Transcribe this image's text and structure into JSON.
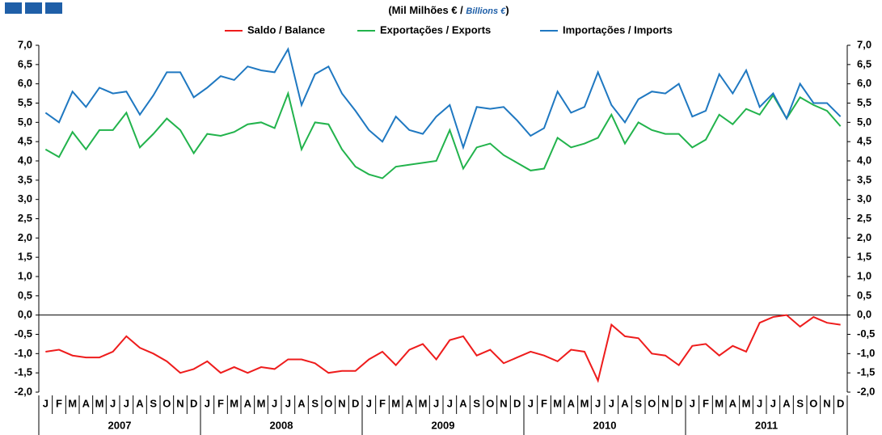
{
  "chart_data": {
    "type": "line",
    "title": [
      "(Mil Milhões € / ",
      "Billions €",
      ")"
    ],
    "categories": [
      "J",
      "F",
      "M",
      "A",
      "M",
      "J",
      "J",
      "A",
      "S",
      "O",
      "N",
      "D",
      "J",
      "F",
      "M",
      "A",
      "M",
      "J",
      "J",
      "A",
      "S",
      "O",
      "N",
      "D",
      "J",
      "F",
      "M",
      "A",
      "M",
      "J",
      "J",
      "A",
      "S",
      "O",
      "N",
      "D",
      "J",
      "F",
      "M",
      "A",
      "M",
      "J",
      "J",
      "A",
      "S",
      "O",
      "N",
      "D",
      "J",
      "F",
      "M",
      "A",
      "M",
      "J",
      "J",
      "A",
      "S",
      "O",
      "N",
      "D"
    ],
    "years": [
      "2007",
      "2008",
      "2009",
      "2010",
      "2011"
    ],
    "legend": "top",
    "series": [
      {
        "name": "Saldo / Balance",
        "color": "#ee1c1c",
        "values": [
          -0.95,
          -0.9,
          -1.05,
          -1.1,
          -1.1,
          -0.95,
          -0.55,
          -0.85,
          -1.0,
          -1.2,
          -1.5,
          -1.4,
          -1.2,
          -1.5,
          -1.35,
          -1.5,
          -1.35,
          -1.4,
          -1.15,
          -1.15,
          -1.25,
          -1.5,
          -1.45,
          -1.45,
          -1.15,
          -0.95,
          -1.3,
          -0.9,
          -0.75,
          -1.15,
          -0.65,
          -0.55,
          -1.05,
          -0.9,
          -1.25,
          -1.1,
          -0.95,
          -1.05,
          -1.2,
          -0.9,
          -0.95,
          -1.7,
          -0.25,
          -0.55,
          -0.6,
          -1.0,
          -1.05,
          -1.3,
          -0.8,
          -0.75,
          -1.05,
          -0.8,
          -0.95,
          -0.2,
          -0.05,
          0.0,
          -0.3,
          -0.05,
          -0.2,
          -0.25
        ]
      },
      {
        "name": "Exportações / Exports",
        "color": "#22b34c",
        "values": [
          4.3,
          4.1,
          4.75,
          4.3,
          4.8,
          4.8,
          5.25,
          4.35,
          4.7,
          5.1,
          4.8,
          4.2,
          4.7,
          4.65,
          4.75,
          4.95,
          5.0,
          4.85,
          5.75,
          4.3,
          5.0,
          4.95,
          4.3,
          3.85,
          3.65,
          3.55,
          3.85,
          3.9,
          3.95,
          4.0,
          4.8,
          3.8,
          4.35,
          4.45,
          4.15,
          3.95,
          3.75,
          3.8,
          4.6,
          4.35,
          4.45,
          4.6,
          5.2,
          4.45,
          5.0,
          4.8,
          4.7,
          4.7,
          4.35,
          4.55,
          5.2,
          4.95,
          5.35,
          5.2,
          5.7,
          5.1,
          5.65,
          5.45,
          5.3,
          4.9
        ]
      },
      {
        "name": "Importações / Imports",
        "color": "#1f78c1",
        "values": [
          5.25,
          5.0,
          5.8,
          5.4,
          5.9,
          5.75,
          5.8,
          5.2,
          5.7,
          6.3,
          6.3,
          5.65,
          5.9,
          6.2,
          6.1,
          6.45,
          6.35,
          6.3,
          6.9,
          5.45,
          6.25,
          6.45,
          5.75,
          5.3,
          4.8,
          4.5,
          5.15,
          4.8,
          4.7,
          5.15,
          5.45,
          4.35,
          5.4,
          5.35,
          5.4,
          5.05,
          4.65,
          4.85,
          5.8,
          5.25,
          5.4,
          6.3,
          5.45,
          5.0,
          5.6,
          5.8,
          5.75,
          6.0,
          5.15,
          5.3,
          6.25,
          5.75,
          6.35,
          5.4,
          5.75,
          5.1,
          6.0,
          5.5,
          5.5,
          5.15
        ]
      }
    ],
    "ylim": [
      -2.0,
      7.0
    ],
    "yticks": [
      {
        "value": 7.0,
        "label": "7,0"
      },
      {
        "value": 6.5,
        "label": "6,5"
      },
      {
        "value": 6.0,
        "label": "6,0"
      },
      {
        "value": 5.5,
        "label": "5,5"
      },
      {
        "value": 5.0,
        "label": "5,0"
      },
      {
        "value": 4.5,
        "label": "4,5"
      },
      {
        "value": 4.0,
        "label": "4,0"
      },
      {
        "value": 3.5,
        "label": "3,5"
      },
      {
        "value": 3.0,
        "label": "3,0"
      },
      {
        "value": 2.5,
        "label": "2,5"
      },
      {
        "value": 2.0,
        "label": "2,0"
      },
      {
        "value": 1.5,
        "label": "1,5"
      },
      {
        "value": 1.0,
        "label": "1,0"
      },
      {
        "value": 0.5,
        "label": "0,5"
      },
      {
        "value": 0.0,
        "label": "0,0"
      },
      {
        "value": -0.5,
        "label": "-0,5"
      },
      {
        "value": -1.0,
        "label": "-1,0"
      },
      {
        "value": -1.5,
        "label": "-1,5"
      },
      {
        "value": -2.0,
        "label": "-2,0"
      }
    ],
    "y2lim": [
      -2.0,
      7.0
    ],
    "y2ticks": [
      {
        "value": 7.0,
        "label": "7,0"
      },
      {
        "value": 6.5,
        "label": "6,5"
      },
      {
        "value": 6.0,
        "label": "6,0"
      },
      {
        "value": 5.5,
        "label": "5,5"
      },
      {
        "value": 5.0,
        "label": "5,0"
      },
      {
        "value": 4.5,
        "label": "4,5"
      },
      {
        "value": 4.0,
        "label": "4,0"
      },
      {
        "value": 3.5,
        "label": "3,5"
      },
      {
        "value": 3.0,
        "label": "3,0"
      },
      {
        "value": 2.5,
        "label": "2,5"
      },
      {
        "value": 2.0,
        "label": "2,0"
      },
      {
        "value": 1.5,
        "label": "1,5"
      },
      {
        "value": 1.0,
        "label": "1,0"
      },
      {
        "value": 0.5,
        "label": "0,5"
      },
      {
        "value": 0.0,
        "label": "0,0"
      },
      {
        "value": -0.5,
        "label": "-0,5"
      },
      {
        "value": -1.0,
        "label": "-1,0"
      },
      {
        "value": -1.5,
        "label": "-1,5"
      },
      {
        "value": -2.0,
        "label": "-2,0"
      }
    ],
    "grid": false
  }
}
